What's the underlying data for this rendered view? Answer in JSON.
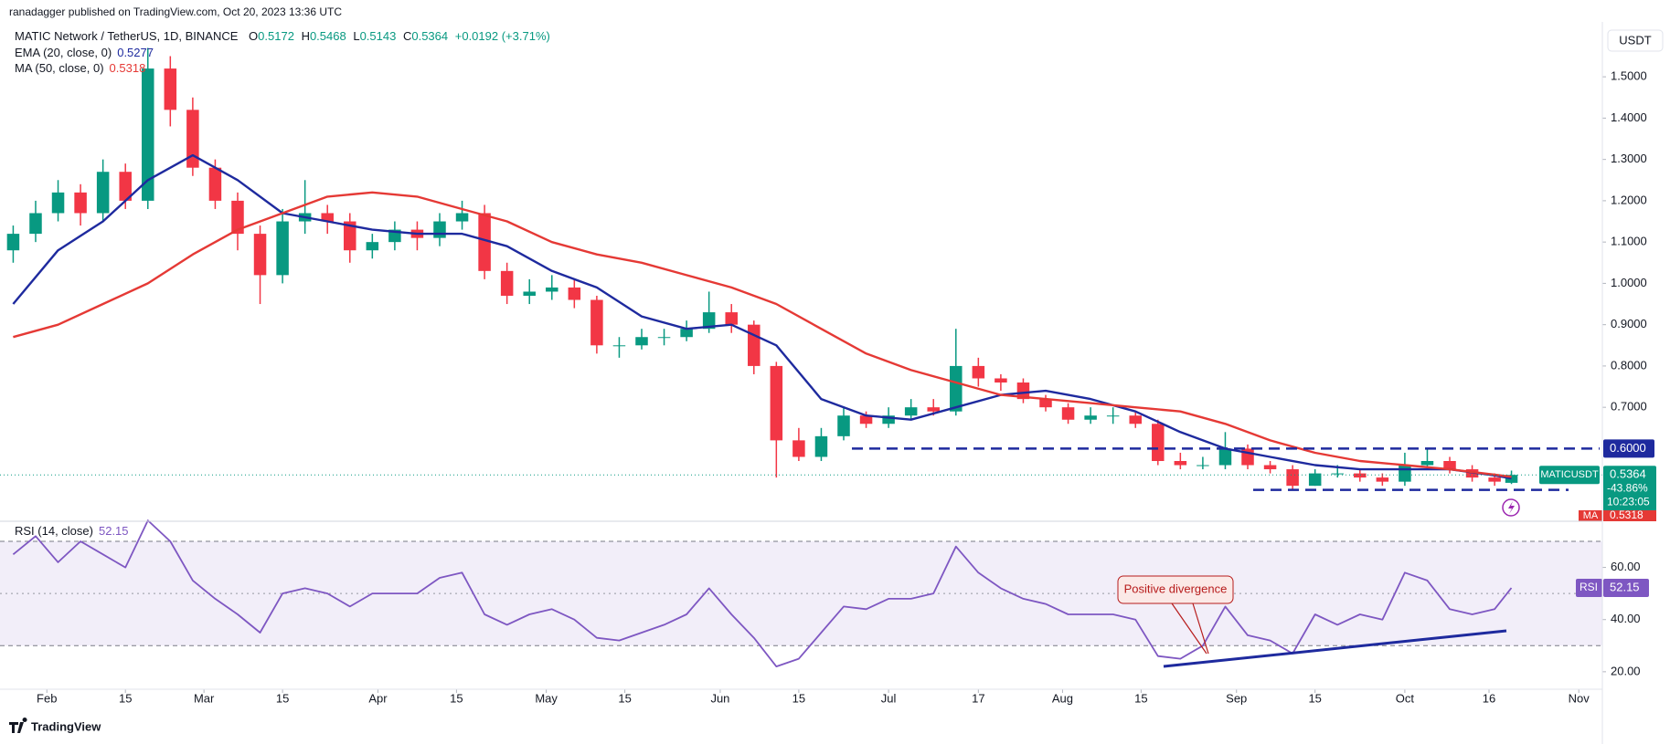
{
  "header": {
    "published": "ranadagger published on TradingView.com, Oct 20, 2023 13:36 UTC"
  },
  "legend": {
    "ohlc": [
      {
        "key": "O",
        "value": "0.5172"
      },
      {
        "key": "H",
        "value": "0.5468"
      },
      {
        "key": "L",
        "value": "0.5143"
      },
      {
        "key": "C",
        "value": "0.5364"
      }
    ],
    "change": "+0.0192 (+3.71%)"
  },
  "price_scale": {
    "currency": "USDT",
    "symbol_tag": "MATICUSDT",
    "price": "0.5364",
    "change": "-43.86%",
    "countdown": "10:23:05",
    "ma_tag": "MA",
    "ma_value": "0.5318"
  },
  "chart_data": [
    {
      "type": "candlestick",
      "title": "MATIC Network / TetherUS, 1D, BINANCE",
      "up_color": "#089981",
      "down_color": "#f23645",
      "x": [
        0,
        4,
        8,
        12,
        16,
        20,
        24,
        28,
        32,
        36,
        40,
        44,
        48,
        52,
        56,
        60,
        64,
        68,
        72,
        76,
        80,
        84,
        88,
        92,
        96,
        100,
        104,
        108,
        112,
        116,
        120,
        124,
        128,
        132,
        136,
        140,
        144,
        148,
        152,
        156,
        160,
        164,
        168,
        172,
        176,
        180,
        184,
        188,
        192,
        196,
        200,
        204,
        208,
        212,
        216,
        220,
        224,
        228,
        232,
        236,
        240,
        244,
        248,
        252,
        256,
        260,
        264,
        267
      ],
      "open": [
        1.08,
        1.12,
        1.17,
        1.22,
        1.17,
        1.27,
        1.2,
        1.52,
        1.42,
        1.28,
        1.2,
        1.12,
        1.02,
        1.15,
        1.17,
        1.15,
        1.08,
        1.1,
        1.13,
        1.11,
        1.15,
        1.17,
        1.03,
        0.97,
        0.98,
        0.99,
        0.96,
        0.85,
        0.85,
        0.87,
        0.87,
        0.89,
        0.93,
        0.9,
        0.8,
        0.62,
        0.58,
        0.63,
        0.68,
        0.66,
        0.68,
        0.7,
        0.69,
        0.8,
        0.77,
        0.76,
        0.72,
        0.7,
        0.67,
        0.68,
        0.68,
        0.66,
        0.57,
        0.56,
        0.56,
        0.6,
        0.56,
        0.55,
        0.51,
        0.54,
        0.54,
        0.53,
        0.52,
        0.56,
        0.57,
        0.55,
        0.53,
        0.5172
      ],
      "high": [
        1.14,
        1.2,
        1.25,
        1.24,
        1.3,
        1.29,
        1.57,
        1.55,
        1.45,
        1.3,
        1.22,
        1.14,
        1.18,
        1.25,
        1.19,
        1.17,
        1.12,
        1.15,
        1.15,
        1.17,
        1.2,
        1.19,
        1.05,
        1.01,
        1.02,
        1.01,
        0.97,
        0.87,
        0.89,
        0.89,
        0.91,
        0.98,
        0.95,
        0.91,
        0.81,
        0.65,
        0.65,
        0.7,
        0.69,
        0.7,
        0.72,
        0.72,
        0.89,
        0.82,
        0.78,
        0.77,
        0.73,
        0.71,
        0.7,
        0.7,
        0.69,
        0.67,
        0.59,
        0.58,
        0.64,
        0.61,
        0.57,
        0.56,
        0.55,
        0.56,
        0.55,
        0.54,
        0.59,
        0.6,
        0.58,
        0.56,
        0.54,
        0.5468
      ],
      "low": [
        1.05,
        1.1,
        1.15,
        1.14,
        1.15,
        1.18,
        1.18,
        1.38,
        1.26,
        1.18,
        1.08,
        0.95,
        1.0,
        1.12,
        1.12,
        1.05,
        1.06,
        1.08,
        1.08,
        1.09,
        1.13,
        1.01,
        0.95,
        0.95,
        0.96,
        0.94,
        0.83,
        0.82,
        0.84,
        0.85,
        0.86,
        0.88,
        0.88,
        0.78,
        0.53,
        0.57,
        0.57,
        0.62,
        0.65,
        0.65,
        0.67,
        0.68,
        0.68,
        0.75,
        0.74,
        0.71,
        0.69,
        0.66,
        0.66,
        0.66,
        0.65,
        0.56,
        0.55,
        0.55,
        0.55,
        0.55,
        0.54,
        0.5,
        0.51,
        0.53,
        0.52,
        0.51,
        0.51,
        0.55,
        0.54,
        0.52,
        0.51,
        0.5143
      ],
      "close": [
        1.12,
        1.17,
        1.22,
        1.17,
        1.27,
        1.2,
        1.52,
        1.42,
        1.28,
        1.2,
        1.12,
        1.02,
        1.15,
        1.17,
        1.15,
        1.08,
        1.1,
        1.13,
        1.11,
        1.15,
        1.17,
        1.03,
        0.97,
        0.98,
        0.99,
        0.96,
        0.85,
        0.85,
        0.87,
        0.87,
        0.89,
        0.93,
        0.9,
        0.8,
        0.62,
        0.58,
        0.63,
        0.68,
        0.66,
        0.68,
        0.7,
        0.69,
        0.8,
        0.77,
        0.76,
        0.72,
        0.7,
        0.67,
        0.68,
        0.68,
        0.66,
        0.57,
        0.56,
        0.56,
        0.6,
        0.56,
        0.55,
        0.51,
        0.54,
        0.54,
        0.53,
        0.52,
        0.56,
        0.57,
        0.55,
        0.53,
        0.52,
        0.5364
      ],
      "series": [
        {
          "name": "EMA (20, close, 0)",
          "legend_value": "0.5277",
          "color": "#1e2a9e",
          "x": [
            0,
            8,
            16,
            24,
            32,
            40,
            48,
            56,
            64,
            72,
            80,
            88,
            96,
            104,
            112,
            120,
            128,
            136,
            144,
            152,
            160,
            168,
            176,
            184,
            192,
            200,
            208,
            216,
            224,
            232,
            240,
            248,
            256,
            264,
            267
          ],
          "values": [
            0.95,
            1.08,
            1.15,
            1.25,
            1.31,
            1.25,
            1.17,
            1.15,
            1.13,
            1.12,
            1.12,
            1.09,
            1.03,
            0.99,
            0.92,
            0.89,
            0.9,
            0.85,
            0.72,
            0.68,
            0.67,
            0.7,
            0.73,
            0.74,
            0.72,
            0.69,
            0.64,
            0.6,
            0.58,
            0.56,
            0.55,
            0.55,
            0.55,
            0.535,
            0.5277
          ]
        },
        {
          "name": "MA (50, close, 0)",
          "legend_value": "0.5318",
          "color": "#e53935",
          "x": [
            0,
            8,
            16,
            24,
            32,
            40,
            48,
            56,
            64,
            72,
            80,
            88,
            96,
            104,
            112,
            120,
            128,
            136,
            144,
            152,
            160,
            168,
            176,
            184,
            192,
            200,
            208,
            216,
            224,
            232,
            240,
            248,
            256,
            264,
            267
          ],
          "values": [
            0.87,
            0.9,
            0.95,
            1.0,
            1.07,
            1.13,
            1.17,
            1.21,
            1.22,
            1.21,
            1.18,
            1.15,
            1.1,
            1.07,
            1.05,
            1.02,
            0.99,
            0.95,
            0.89,
            0.83,
            0.79,
            0.76,
            0.73,
            0.72,
            0.71,
            0.7,
            0.69,
            0.66,
            0.62,
            0.59,
            0.57,
            0.56,
            0.55,
            0.537,
            0.5318
          ]
        }
      ],
      "levels": [
        {
          "value": 0.6,
          "label": "0.6000",
          "color": "#1e2a9e"
        },
        {
          "value": 0.5,
          "color": "#1e2a9e"
        }
      ],
      "xlim": [
        -2.35,
        283.2
      ],
      "ylim": [
        0.433,
        1.613
      ],
      "yticks": [
        {
          "value": 0.7,
          "label": "0.7000"
        },
        {
          "value": 0.8,
          "label": "0.8000"
        },
        {
          "value": 0.9,
          "label": "0.9000"
        },
        {
          "value": 1.0,
          "label": "1.0000"
        },
        {
          "value": 1.1,
          "label": "1.1000"
        },
        {
          "value": 1.2,
          "label": "1.2000"
        },
        {
          "value": 1.3,
          "label": "1.3000"
        },
        {
          "value": 1.4,
          "label": "1.4000"
        },
        {
          "value": 1.5,
          "label": "1.5000"
        }
      ],
      "grid": false
    },
    {
      "type": "line",
      "title": "RSI (14, close)",
      "series": [
        {
          "name": "RSI",
          "legend_value": "52.15",
          "color": "#7e57c2",
          "x": [
            0,
            4,
            8,
            12,
            16,
            20,
            24,
            28,
            32,
            36,
            40,
            44,
            48,
            52,
            56,
            60,
            64,
            68,
            72,
            76,
            80,
            84,
            88,
            92,
            96,
            100,
            104,
            108,
            112,
            116,
            120,
            124,
            128,
            132,
            136,
            140,
            144,
            148,
            152,
            156,
            160,
            164,
            168,
            172,
            176,
            180,
            184,
            188,
            192,
            196,
            200,
            204,
            208,
            212,
            216,
            220,
            224,
            228,
            232,
            236,
            240,
            244,
            248,
            252,
            256,
            260,
            264,
            267
          ],
          "values": [
            65,
            72,
            62,
            70,
            65,
            60,
            78,
            70,
            55,
            48,
            42,
            35,
            50,
            52,
            50,
            45,
            50,
            50,
            50,
            56,
            58,
            42,
            38,
            42,
            44,
            40,
            33,
            32,
            35,
            38,
            42,
            52,
            42,
            33,
            22,
            25,
            35,
            45,
            44,
            48,
            48,
            50,
            68,
            58,
            52,
            48,
            46,
            42,
            42,
            42,
            40,
            26,
            25,
            30,
            45,
            34,
            32,
            27,
            42,
            38,
            42,
            40,
            58,
            55,
            44,
            42,
            44,
            52.15
          ]
        }
      ],
      "band": [
        30,
        70
      ],
      "midline": 50,
      "xlim": [
        -2.35,
        283.2
      ],
      "ylim": [
        14.7,
        77
      ],
      "yticks": [
        {
          "value": 20,
          "label": "20.00"
        },
        {
          "value": 40,
          "label": "40.00"
        },
        {
          "value": 60,
          "label": "60.00"
        }
      ],
      "xticks": [
        {
          "value": 6,
          "label": "Feb"
        },
        {
          "value": 20,
          "label": "15"
        },
        {
          "value": 34,
          "label": "Mar"
        },
        {
          "value": 48,
          "label": "15"
        },
        {
          "value": 65,
          "label": "Apr"
        },
        {
          "value": 79,
          "label": "15"
        },
        {
          "value": 95,
          "label": "May"
        },
        {
          "value": 109,
          "label": "15"
        },
        {
          "value": 126,
          "label": "Jun"
        },
        {
          "value": 140,
          "label": "15"
        },
        {
          "value": 156,
          "label": "Jul"
        },
        {
          "value": 172,
          "label": "17"
        },
        {
          "value": 187,
          "label": "Aug"
        },
        {
          "value": 201,
          "label": "15"
        },
        {
          "value": 218,
          "label": "Sep"
        },
        {
          "value": 232,
          "label": "15"
        },
        {
          "value": 248,
          "label": "Oct"
        },
        {
          "value": 263,
          "label": "16"
        },
        {
          "value": 279,
          "label": "Nov"
        }
      ],
      "grid": false
    }
  ],
  "annotation": "Positive divergence",
  "footer": "TradingView"
}
